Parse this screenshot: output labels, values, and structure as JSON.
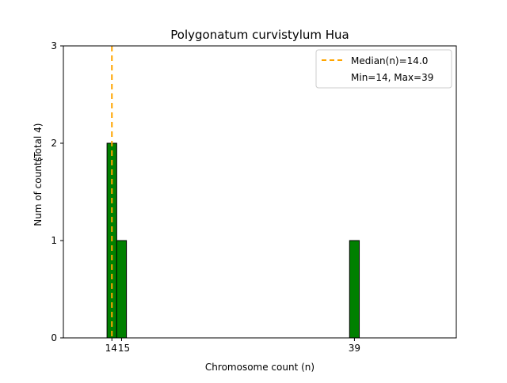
{
  "chart_data": {
    "type": "bar",
    "title": "Polygonatum curvistylum Hua",
    "xlabel": "Chromosome count (n)",
    "ylabel": "Num of counts",
    "ylabel_total": "(Total 4)",
    "x_ticks": [
      14,
      15,
      39
    ],
    "x_tick_labels": [
      "14",
      "15",
      "39"
    ],
    "y_ticks": [
      0,
      1,
      2,
      3
    ],
    "y_tick_labels": [
      "0",
      "1",
      "2",
      "3"
    ],
    "xlim": [
      9,
      49.5
    ],
    "ylim": [
      0,
      3
    ],
    "bins": [
      {
        "x": 14,
        "count": 2
      },
      {
        "x": 15,
        "count": 1
      },
      {
        "x": 39,
        "count": 1
      }
    ],
    "median": 14.0,
    "legend": {
      "position": "top-right",
      "median_label": "Median(n)=14.0",
      "range_label": "Min=14, Max=39"
    },
    "colors": {
      "bar_fill": "#008000",
      "bar_edge": "#000000",
      "median_line": "#FFA500",
      "axes": "#000000"
    }
  }
}
